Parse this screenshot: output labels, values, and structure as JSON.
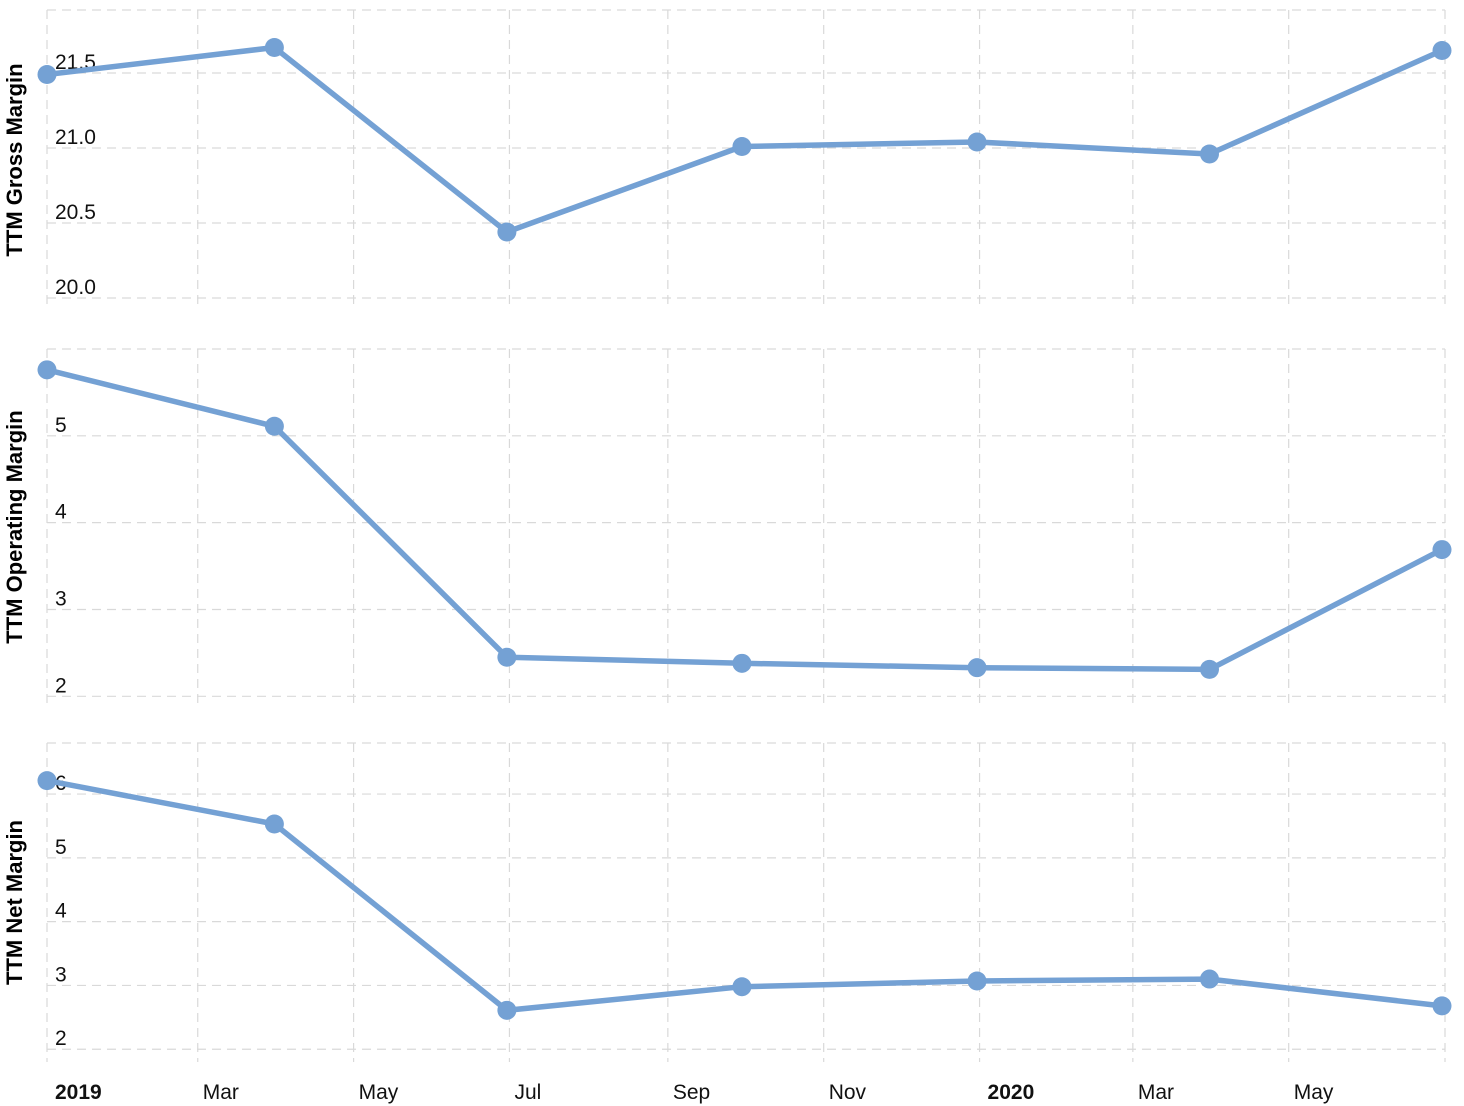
{
  "chart_data": {
    "type": "line",
    "x_ticks": [
      {
        "date": "2019-01-01",
        "label": "2019",
        "bold": true
      },
      {
        "date": "2019-03-01",
        "label": "Mar",
        "bold": false
      },
      {
        "date": "2019-05-01",
        "label": "May",
        "bold": false
      },
      {
        "date": "2019-07-01",
        "label": "Jul",
        "bold": false
      },
      {
        "date": "2019-09-01",
        "label": "Sep",
        "bold": false
      },
      {
        "date": "2019-11-01",
        "label": "Nov",
        "bold": false
      },
      {
        "date": "2020-01-01",
        "label": "2020",
        "bold": true
      },
      {
        "date": "2020-03-01",
        "label": "Mar",
        "bold": false
      },
      {
        "date": "2020-05-01",
        "label": "May",
        "bold": false
      }
    ],
    "x_range": [
      "2019-01-01",
      "2020-06-30"
    ],
    "color": "#74a1d4",
    "panels": [
      {
        "ylabel": "TTM Gross Margin",
        "ylim": [
          19.92,
          21.92
        ],
        "yticks": [
          {
            "value": 20.0,
            "label": "20.0"
          },
          {
            "value": 20.5,
            "label": "20.5"
          },
          {
            "value": 21.0,
            "label": "21.0"
          },
          {
            "value": 21.5,
            "label": "21.5"
          }
        ],
        "points": [
          {
            "date": "2019-01-01",
            "value": 21.49
          },
          {
            "date": "2019-03-31",
            "value": 21.67
          },
          {
            "date": "2019-06-30",
            "value": 20.44
          },
          {
            "date": "2019-09-30",
            "value": 21.01
          },
          {
            "date": "2019-12-31",
            "value": 21.04
          },
          {
            "date": "2020-03-31",
            "value": 20.96
          },
          {
            "date": "2020-06-30",
            "value": 21.65
          }
        ]
      },
      {
        "ylabel": "TTM Operating Margin",
        "ylim": [
          1.9,
          6.0
        ],
        "yticks": [
          {
            "value": 2,
            "label": "2"
          },
          {
            "value": 3,
            "label": "3"
          },
          {
            "value": 4,
            "label": "4"
          },
          {
            "value": 5,
            "label": "5"
          }
        ],
        "points": [
          {
            "date": "2019-01-01",
            "value": 5.76
          },
          {
            "date": "2019-03-31",
            "value": 5.11
          },
          {
            "date": "2019-06-30",
            "value": 2.45
          },
          {
            "date": "2019-09-30",
            "value": 2.38
          },
          {
            "date": "2019-12-31",
            "value": 2.33
          },
          {
            "date": "2020-03-31",
            "value": 2.31
          },
          {
            "date": "2020-06-30",
            "value": 3.69
          }
        ]
      },
      {
        "ylabel": "TTM Net Margin",
        "ylim": [
          1.8,
          6.8
        ],
        "yticks": [
          {
            "value": 2,
            "label": "2"
          },
          {
            "value": 3,
            "label": "3"
          },
          {
            "value": 4,
            "label": "4"
          },
          {
            "value": 5,
            "label": "5"
          },
          {
            "value": 6,
            "label": "6"
          }
        ],
        "points": [
          {
            "date": "2019-01-01",
            "value": 6.21
          },
          {
            "date": "2019-03-31",
            "value": 5.53
          },
          {
            "date": "2019-06-30",
            "value": 2.61
          },
          {
            "date": "2019-09-30",
            "value": 2.98
          },
          {
            "date": "2019-12-31",
            "value": 3.07
          },
          {
            "date": "2020-03-31",
            "value": 3.1
          },
          {
            "date": "2020-06-30",
            "value": 2.68
          }
        ]
      }
    ],
    "grid": true,
    "legend": "none"
  }
}
